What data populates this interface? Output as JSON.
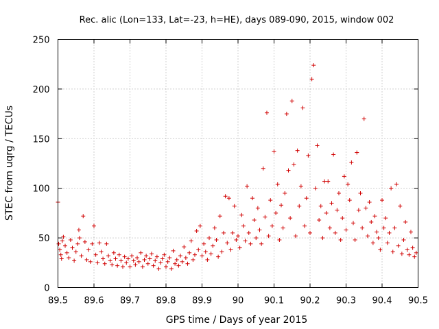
{
  "chart_data": {
    "type": "scatter",
    "title": "Rec. alic (Lon=133, Lat=-23, h=HE), days 089-090, 2015, window 002",
    "xlabel": "GPS time / Days of year 2015",
    "ylabel": "STEC from uqrg / TECUs",
    "xlim": [
      89.5,
      90.5
    ],
    "ylim": [
      0,
      250
    ],
    "xticks": [
      89.5,
      89.6,
      89.7,
      89.8,
      89.9,
      90,
      90.1,
      90.2,
      90.3,
      90.4,
      90.5
    ],
    "xtick_labels": [
      "89.5",
      "89.6",
      "89.7",
      "89.8",
      "89.9",
      "90",
      "90.1",
      "90.2",
      "90.3",
      "90.4",
      "90.5"
    ],
    "yticks": [
      0,
      50,
      100,
      150,
      200,
      250
    ],
    "ytick_labels": [
      "0",
      "50",
      "100",
      "150",
      "200",
      "250"
    ],
    "grid": true,
    "marker": "+",
    "color": "#d00000",
    "series": [
      {
        "name": "stec",
        "points": [
          [
            89.5,
            86
          ],
          [
            89.502,
            44
          ],
          [
            89.505,
            38
          ],
          [
            89.508,
            33
          ],
          [
            89.51,
            29
          ],
          [
            89.512,
            47
          ],
          [
            89.515,
            51
          ],
          [
            89.52,
            42
          ],
          [
            89.525,
            35
          ],
          [
            89.53,
            30
          ],
          [
            89.535,
            48
          ],
          [
            89.54,
            40
          ],
          [
            89.545,
            27
          ],
          [
            89.55,
            36
          ],
          [
            89.555,
            44
          ],
          [
            89.558,
            58
          ],
          [
            89.56,
            50
          ],
          [
            89.565,
            32
          ],
          [
            89.57,
            72
          ],
          [
            89.575,
            46
          ],
          [
            89.58,
            28
          ],
          [
            89.585,
            38
          ],
          [
            89.59,
            26
          ],
          [
            89.595,
            44
          ],
          [
            89.6,
            62
          ],
          [
            89.605,
            33
          ],
          [
            89.61,
            25
          ],
          [
            89.615,
            45
          ],
          [
            89.62,
            36
          ],
          [
            89.625,
            29
          ],
          [
            89.63,
            24
          ],
          [
            89.635,
            44
          ],
          [
            89.64,
            32
          ],
          [
            89.645,
            27
          ],
          [
            89.65,
            23
          ],
          [
            89.655,
            35
          ],
          [
            89.66,
            29
          ],
          [
            89.665,
            22
          ],
          [
            89.67,
            33
          ],
          [
            89.675,
            27
          ],
          [
            89.68,
            21
          ],
          [
            89.685,
            31
          ],
          [
            89.69,
            25
          ],
          [
            89.695,
            29
          ],
          [
            89.7,
            21
          ],
          [
            89.705,
            32
          ],
          [
            89.71,
            27
          ],
          [
            89.715,
            23
          ],
          [
            89.72,
            30
          ],
          [
            89.725,
            26
          ],
          [
            89.73,
            35
          ],
          [
            89.735,
            21
          ],
          [
            89.74,
            28
          ],
          [
            89.745,
            32
          ],
          [
            89.75,
            24
          ],
          [
            89.755,
            29
          ],
          [
            89.76,
            34
          ],
          [
            89.765,
            22
          ],
          [
            89.77,
            27
          ],
          [
            89.775,
            31
          ],
          [
            89.78,
            19
          ],
          [
            89.785,
            25
          ],
          [
            89.79,
            29
          ],
          [
            89.795,
            33
          ],
          [
            89.8,
            21
          ],
          [
            89.805,
            26
          ],
          [
            89.81,
            30
          ],
          [
            89.815,
            19
          ],
          [
            89.82,
            37
          ],
          [
            89.825,
            24
          ],
          [
            89.83,
            28
          ],
          [
            89.835,
            22
          ],
          [
            89.84,
            32
          ],
          [
            89.845,
            26
          ],
          [
            89.85,
            41
          ],
          [
            89.855,
            30
          ],
          [
            89.86,
            24
          ],
          [
            89.865,
            35
          ],
          [
            89.87,
            47
          ],
          [
            89.875,
            28
          ],
          [
            89.88,
            33
          ],
          [
            89.885,
            57
          ],
          [
            89.89,
            38
          ],
          [
            89.895,
            62
          ],
          [
            89.9,
            32
          ],
          [
            89.905,
            44
          ],
          [
            89.91,
            36
          ],
          [
            89.915,
            28
          ],
          [
            89.92,
            50
          ],
          [
            89.925,
            34
          ],
          [
            89.93,
            42
          ],
          [
            89.935,
            60
          ],
          [
            89.94,
            48
          ],
          [
            89.945,
            31
          ],
          [
            89.95,
            72
          ],
          [
            89.955,
            36
          ],
          [
            89.96,
            55
          ],
          [
            89.965,
            92
          ],
          [
            89.97,
            45
          ],
          [
            89.975,
            90
          ],
          [
            89.98,
            38
          ],
          [
            89.985,
            55
          ],
          [
            89.99,
            82
          ],
          [
            89.995,
            48
          ],
          [
            90.0,
            52
          ],
          [
            90.005,
            40
          ],
          [
            90.01,
            73
          ],
          [
            90.015,
            62
          ],
          [
            90.02,
            47
          ],
          [
            90.025,
            102
          ],
          [
            90.03,
            55
          ],
          [
            90.035,
            44
          ],
          [
            90.04,
            90
          ],
          [
            90.045,
            68
          ],
          [
            90.05,
            50
          ],
          [
            90.055,
            80
          ],
          [
            90.06,
            58
          ],
          [
            90.065,
            44
          ],
          [
            90.07,
            120
          ],
          [
            90.075,
            71
          ],
          [
            90.08,
            176
          ],
          [
            90.085,
            52
          ],
          [
            90.09,
            88
          ],
          [
            90.095,
            62
          ],
          [
            90.1,
            137
          ],
          [
            90.105,
            75
          ],
          [
            90.11,
            104
          ],
          [
            90.115,
            48
          ],
          [
            90.12,
            83
          ],
          [
            90.125,
            60
          ],
          [
            90.13,
            95
          ],
          [
            90.135,
            175
          ],
          [
            90.14,
            118
          ],
          [
            90.145,
            70
          ],
          [
            90.15,
            188
          ],
          [
            90.155,
            124
          ],
          [
            90.16,
            52
          ],
          [
            90.165,
            138
          ],
          [
            90.17,
            82
          ],
          [
            90.175,
            102
          ],
          [
            90.18,
            181
          ],
          [
            90.185,
            62
          ],
          [
            90.19,
            90
          ],
          [
            90.195,
            133
          ],
          [
            90.2,
            55
          ],
          [
            90.205,
            210
          ],
          [
            90.21,
            224
          ],
          [
            90.215,
            100
          ],
          [
            90.22,
            143
          ],
          [
            90.225,
            68
          ],
          [
            90.23,
            82
          ],
          [
            90.235,
            50
          ],
          [
            90.24,
            107
          ],
          [
            90.245,
            75
          ],
          [
            90.25,
            107
          ],
          [
            90.255,
            60
          ],
          [
            90.26,
            85
          ],
          [
            90.265,
            134
          ],
          [
            90.27,
            55
          ],
          [
            90.275,
            78
          ],
          [
            90.28,
            95
          ],
          [
            90.285,
            48
          ],
          [
            90.29,
            70
          ],
          [
            90.295,
            112
          ],
          [
            90.3,
            58
          ],
          [
            90.305,
            104
          ],
          [
            90.31,
            88
          ],
          [
            90.315,
            126
          ],
          [
            90.32,
            65
          ],
          [
            90.325,
            48
          ],
          [
            90.33,
            136
          ],
          [
            90.335,
            78
          ],
          [
            90.34,
            95
          ],
          [
            90.345,
            60
          ],
          [
            90.35,
            170
          ],
          [
            90.355,
            80
          ],
          [
            90.36,
            52
          ],
          [
            90.365,
            86
          ],
          [
            90.37,
            66
          ],
          [
            90.375,
            45
          ],
          [
            90.38,
            72
          ],
          [
            90.385,
            56
          ],
          [
            90.39,
            50
          ],
          [
            90.395,
            38
          ],
          [
            90.4,
            88
          ],
          [
            90.405,
            60
          ],
          [
            90.41,
            70
          ],
          [
            90.415,
            45
          ],
          [
            90.42,
            55
          ],
          [
            90.425,
            100
          ],
          [
            90.43,
            36
          ],
          [
            90.435,
            60
          ],
          [
            90.44,
            104
          ],
          [
            90.445,
            42
          ],
          [
            90.45,
            82
          ],
          [
            90.455,
            34
          ],
          [
            90.46,
            48
          ],
          [
            90.465,
            66
          ],
          [
            90.47,
            38
          ],
          [
            90.475,
            33
          ],
          [
            90.48,
            56
          ],
          [
            90.485,
            40
          ],
          [
            90.49,
            31
          ],
          [
            90.495,
            35
          ]
        ]
      }
    ]
  }
}
